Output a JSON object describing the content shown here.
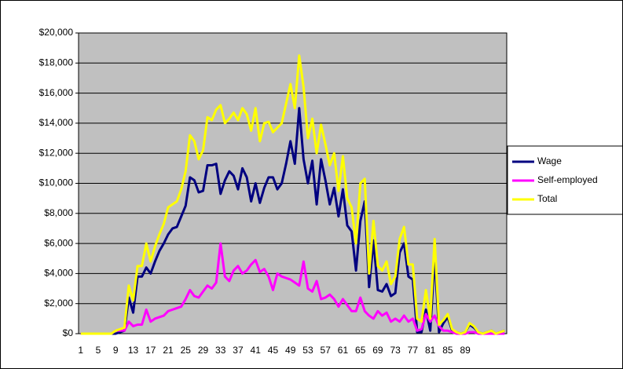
{
  "chart_data": {
    "type": "line",
    "categories": [
      "1",
      null,
      null,
      null,
      "5",
      null,
      null,
      null,
      "9",
      null,
      null,
      null,
      "13",
      null,
      null,
      null,
      "17",
      null,
      null,
      null,
      "21",
      null,
      null,
      null,
      "25",
      null,
      null,
      null,
      "29",
      null,
      null,
      null,
      "33",
      null,
      null,
      null,
      "37",
      null,
      null,
      null,
      "41",
      null,
      null,
      null,
      "45",
      null,
      null,
      null,
      "49",
      null,
      null,
      null,
      "53",
      null,
      null,
      null,
      "57",
      null,
      null,
      null,
      "61",
      null,
      null,
      null,
      "65",
      null,
      null,
      null,
      "69",
      null,
      null,
      null,
      "73",
      null,
      null,
      null,
      "77",
      null,
      null,
      null,
      "81",
      null,
      null,
      null,
      "85",
      null,
      null,
      null,
      "89",
      null,
      null,
      null,
      null,
      null,
      null,
      null,
      null,
      null
    ],
    "series": [
      {
        "name": "Wage",
        "color": "#000080",
        "values": [
          0,
          0,
          0,
          0,
          0,
          0,
          0,
          0,
          0,
          100,
          200,
          2400,
          1400,
          3800,
          3800,
          4400,
          4000,
          4800,
          5500,
          6000,
          6600,
          7000,
          7100,
          7800,
          8500,
          10400,
          10200,
          9400,
          9500,
          11200,
          11200,
          11300,
          9300,
          10200,
          10800,
          10500,
          9600,
          11000,
          10400,
          8800,
          10000,
          8700,
          9700,
          10400,
          10400,
          9600,
          10000,
          11300,
          12800,
          11300,
          15000,
          11600,
          10000,
          11500,
          8600,
          11600,
          10200,
          8600,
          9700,
          7800,
          9600,
          7200,
          6800,
          4200,
          7500,
          8800,
          3100,
          6200,
          2900,
          2800,
          3300,
          2500,
          2700,
          5400,
          6000,
          3800,
          3600,
          100,
          100,
          1600,
          200,
          5100,
          100,
          700,
          1100,
          200,
          100,
          0,
          100,
          600,
          400,
          100,
          0,
          100,
          200,
          0,
          100,
          200
        ]
      },
      {
        "name": "Self-employed",
        "color": "#ff00ff",
        "values": [
          0,
          0,
          0,
          0,
          0,
          0,
          0,
          0,
          200,
          200,
          200,
          800,
          500,
          600,
          600,
          1600,
          800,
          1000,
          1100,
          1200,
          1500,
          1600,
          1700,
          1800,
          2300,
          2900,
          2500,
          2400,
          2800,
          3200,
          3000,
          3400,
          6000,
          3800,
          3500,
          4200,
          4500,
          4000,
          4200,
          4600,
          4900,
          4100,
          4300,
          3800,
          2900,
          4000,
          3800,
          3700,
          3600,
          3400,
          3200,
          4800,
          3000,
          2800,
          3500,
          2300,
          2400,
          2600,
          2300,
          1800,
          2300,
          1900,
          1500,
          1500,
          2400,
          1500,
          1200,
          1000,
          1500,
          1200,
          1400,
          800,
          1000,
          800,
          1200,
          800,
          1000,
          200,
          300,
          1300,
          800,
          1200,
          500,
          200,
          200,
          100,
          0,
          0,
          0,
          100,
          100,
          0,
          0,
          0,
          0,
          0,
          0,
          0
        ]
      },
      {
        "name": "Total",
        "color": "#ffff00",
        "values": [
          0,
          0,
          0,
          0,
          0,
          0,
          0,
          0,
          200,
          300,
          400,
          3200,
          2200,
          4500,
          4500,
          6000,
          4800,
          5800,
          6600,
          7300,
          8400,
          8600,
          8800,
          9600,
          10800,
          13200,
          12800,
          11600,
          12200,
          14400,
          14200,
          14900,
          15200,
          14000,
          14300,
          14700,
          14200,
          15000,
          14600,
          13500,
          15000,
          12800,
          14000,
          14100,
          13400,
          13700,
          14000,
          15300,
          16600,
          15000,
          18500,
          16400,
          13000,
          14300,
          12000,
          13900,
          12600,
          11200,
          12000,
          9500,
          11800,
          9000,
          8400,
          6000,
          10000,
          10300,
          4000,
          7500,
          4500,
          4200,
          4800,
          3300,
          3800,
          6300,
          7100,
          4600,
          4600,
          1000,
          800,
          2900,
          1000,
          6300,
          600,
          900,
          1300,
          300,
          100,
          0,
          100,
          700,
          500,
          100,
          0,
          100,
          200,
          0,
          100,
          200
        ]
      }
    ],
    "ylim": [
      0,
      20000
    ],
    "yticks": [
      {
        "value": 0,
        "label": "$0"
      },
      {
        "value": 2000,
        "label": "$2,000"
      },
      {
        "value": 4000,
        "label": "$4,000"
      },
      {
        "value": 6000,
        "label": "$6,000"
      },
      {
        "value": 8000,
        "label": "$8,000"
      },
      {
        "value": 10000,
        "label": "$10,000"
      },
      {
        "value": 12000,
        "label": "$12,000"
      },
      {
        "value": 14000,
        "label": "$14,000"
      },
      {
        "value": 16000,
        "label": "$16,000"
      },
      {
        "value": 18000,
        "label": "$18,000"
      },
      {
        "value": 20000,
        "label": "$20,000"
      }
    ],
    "grid": true,
    "legend": "right",
    "plot_background": "#c0c0c0"
  }
}
